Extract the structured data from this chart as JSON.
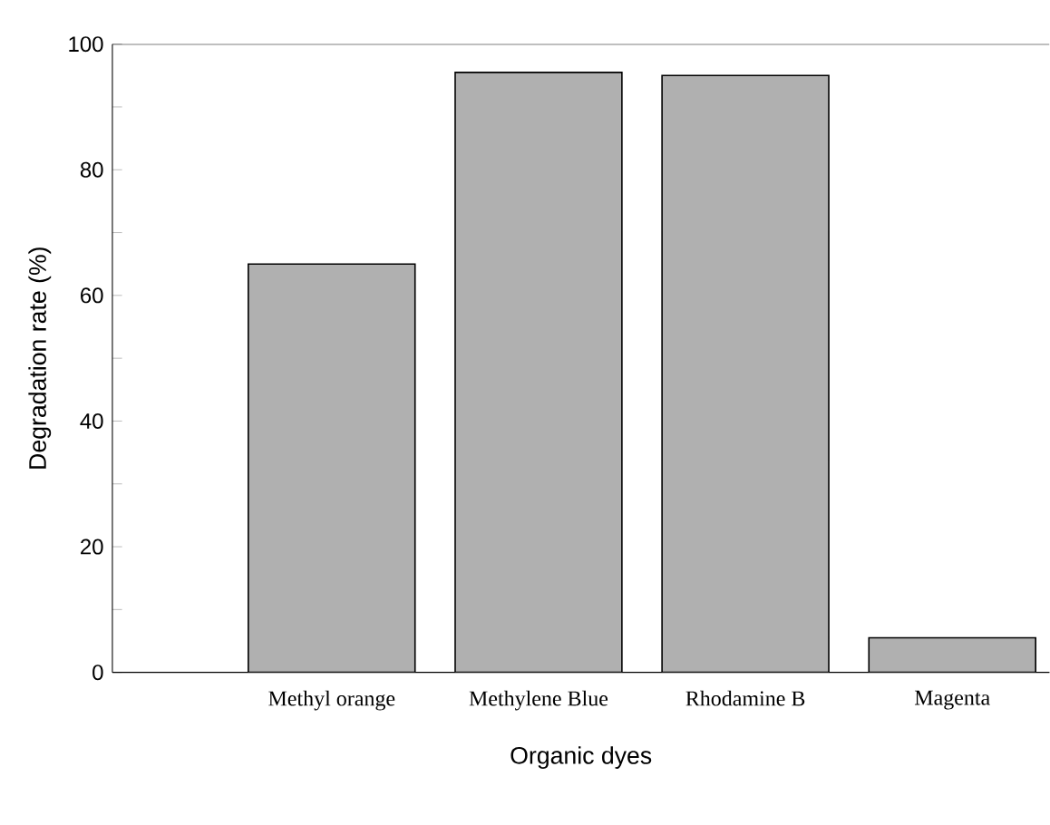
{
  "chart_data": {
    "type": "bar",
    "xlabel": "Organic dyes",
    "ylabel": "Degradation rate (%)",
    "categories": [
      "Methyl orange",
      "Methylene Blue",
      "Rhodamine B",
      "Magenta"
    ],
    "values": [
      65,
      95.5,
      95,
      5.5
    ],
    "color": "#b0b0b0",
    "ylim": [
      0,
      100
    ],
    "yticks": [
      0,
      20,
      40,
      60,
      80,
      100
    ],
    "grid": false
  }
}
